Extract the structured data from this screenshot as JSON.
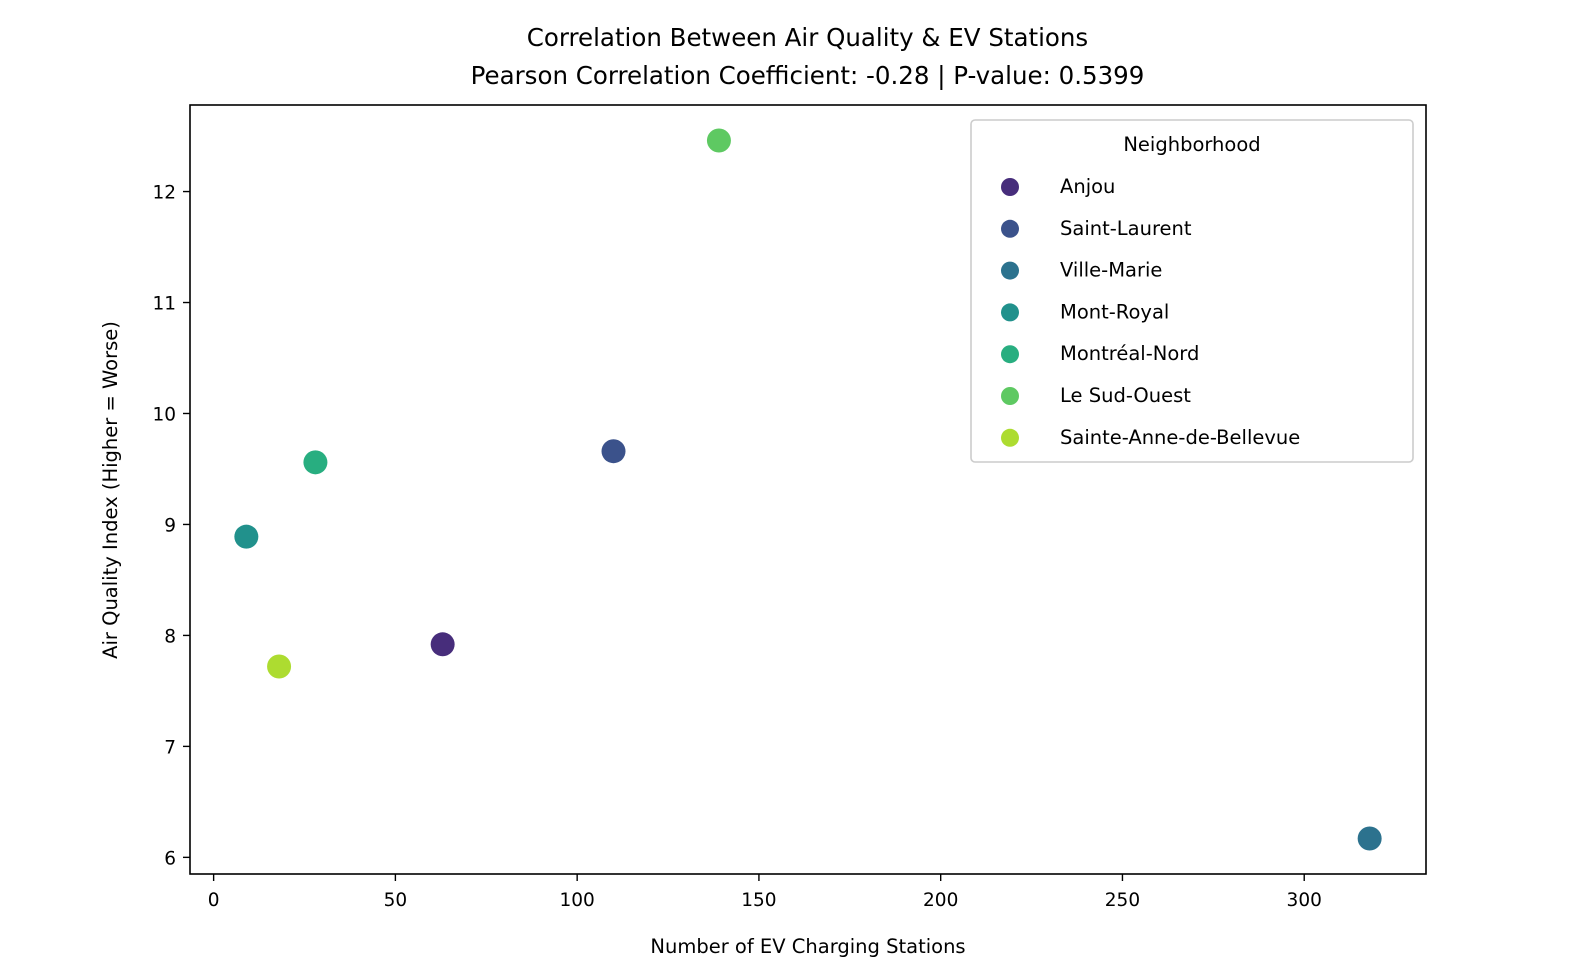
{
  "chart_data": {
    "type": "scatter",
    "title": "Correlation Between Air Quality & EV Stations",
    "subtitle": "Pearson Correlation Coefficient: -0.28 | P-value: 0.5399",
    "xlabel": "Number of EV Charging Stations",
    "ylabel": "Air Quality Index (Higher = Worse)",
    "xlim": [
      -6.5,
      333.5
    ],
    "ylim": [
      5.85,
      12.78
    ],
    "xticks": [
      0,
      50,
      100,
      150,
      200,
      250,
      300
    ],
    "yticks": [
      6,
      7,
      8,
      9,
      10,
      11,
      12
    ],
    "grid": false,
    "legend": {
      "title": "Neighborhood",
      "placement": "top-right"
    },
    "series": [
      {
        "name": "Anjou",
        "color": "#472d7b",
        "points": [
          {
            "x": 63,
            "y": 7.92
          }
        ]
      },
      {
        "name": "Saint-Laurent",
        "color": "#3b528b",
        "points": [
          {
            "x": 110,
            "y": 9.66
          }
        ]
      },
      {
        "name": "Ville-Marie",
        "color": "#2c728e",
        "points": [
          {
            "x": 318,
            "y": 6.17
          }
        ]
      },
      {
        "name": "Mont-Royal",
        "color": "#21918c",
        "points": [
          {
            "x": 9,
            "y": 8.89
          }
        ]
      },
      {
        "name": "Montréal-Nord",
        "color": "#28ae80",
        "points": [
          {
            "x": 28,
            "y": 9.56
          }
        ]
      },
      {
        "name": "Le Sud-Ouest",
        "color": "#5ec962",
        "points": [
          {
            "x": 139,
            "y": 12.46
          }
        ]
      },
      {
        "name": "Sainte-Anne-de-Bellevue",
        "color": "#addc30",
        "points": [
          {
            "x": 18,
            "y": 7.72
          }
        ]
      }
    ]
  }
}
